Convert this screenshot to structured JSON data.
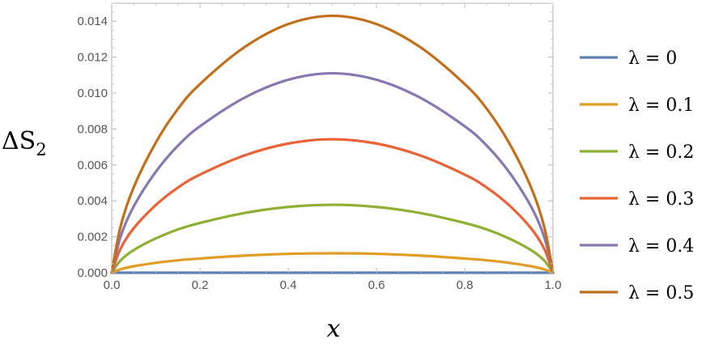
{
  "chart_data": {
    "type": "line",
    "title": "",
    "xlabel": "x",
    "ylabel": {
      "main": "ΔS",
      "sub": "2"
    },
    "xlim": [
      0,
      1
    ],
    "ylim": [
      0,
      0.015
    ],
    "x_ticks": [
      "0.0",
      "0.2",
      "0.4",
      "0.6",
      "0.8",
      "1.0"
    ],
    "y_ticks": [
      "0.000",
      "0.002",
      "0.004",
      "0.006",
      "0.008",
      "0.010",
      "0.012",
      "0.014"
    ],
    "grid": false,
    "legend_position": "right",
    "x": [
      0,
      0.02,
      0.05,
      0.1,
      0.15,
      0.2,
      0.3,
      0.4,
      0.5,
      0.6,
      0.7,
      0.8,
      0.85,
      0.9,
      0.95,
      0.98,
      1
    ],
    "series": [
      {
        "name": "λ = 0",
        "color": "#5E81B5",
        "values": [
          0,
          0,
          0,
          0,
          0,
          0,
          0,
          0,
          0,
          0,
          0,
          0,
          0,
          0,
          0,
          0,
          0
        ]
      },
      {
        "name": "λ = 0.1",
        "color": "#E19C24",
        "values": [
          0,
          0.00019,
          0.00036,
          0.00055,
          0.00069,
          0.00079,
          0.00095,
          0.00105,
          0.00108,
          0.00105,
          0.00095,
          0.00079,
          0.00069,
          0.00055,
          0.00036,
          0.00019,
          0
        ]
      },
      {
        "name": "λ = 0.2",
        "color": "#8FB032",
        "values": [
          0,
          0.00068,
          0.00126,
          0.00191,
          0.00241,
          0.00277,
          0.00332,
          0.00366,
          0.00378,
          0.00366,
          0.00332,
          0.00277,
          0.00241,
          0.00191,
          0.00126,
          0.00068,
          0
        ]
      },
      {
        "name": "λ = 0.3",
        "color": "#EB6235",
        "values": [
          0,
          0.00134,
          0.00248,
          0.00377,
          0.00474,
          0.00546,
          0.00652,
          0.00719,
          0.00743,
          0.00719,
          0.00652,
          0.00546,
          0.00474,
          0.00377,
          0.00248,
          0.00134,
          0
        ]
      },
      {
        "name": "λ = 0.4",
        "color": "#8778B3",
        "values": [
          0,
          0.002,
          0.0037,
          0.00562,
          0.00707,
          0.00815,
          0.00973,
          0.01074,
          0.0111,
          0.01074,
          0.00973,
          0.00815,
          0.00707,
          0.00562,
          0.0037,
          0.002,
          0
        ]
      },
      {
        "name": "λ = 0.5",
        "color": "#C56E1A",
        "values": [
          0,
          0.00257,
          0.00477,
          0.00725,
          0.00912,
          0.0105,
          0.01254,
          0.01384,
          0.0143,
          0.01384,
          0.01254,
          0.0105,
          0.00912,
          0.00725,
          0.00477,
          0.00257,
          0
        ]
      }
    ]
  }
}
